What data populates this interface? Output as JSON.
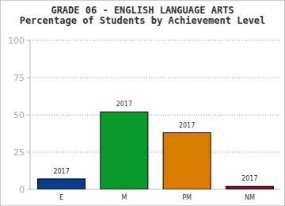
{
  "chart_data": {
    "type": "bar",
    "title": "GRADE 06 - ENGLISH LANGUAGE ARTS",
    "subtitle": "Percentage of Students by Achievement Level",
    "categories": [
      "E",
      "M",
      "PM",
      "NM"
    ],
    "series": [
      {
        "name": "2017",
        "colors": [
          "#0c3c8c",
          "#0a9a2c",
          "#d97c00",
          "#8a0a22"
        ],
        "values": [
          7,
          52,
          38,
          2
        ]
      }
    ],
    "ylim": [
      0,
      100
    ],
    "yticks": [
      0,
      25,
      50,
      75,
      100
    ],
    "grid": true
  }
}
